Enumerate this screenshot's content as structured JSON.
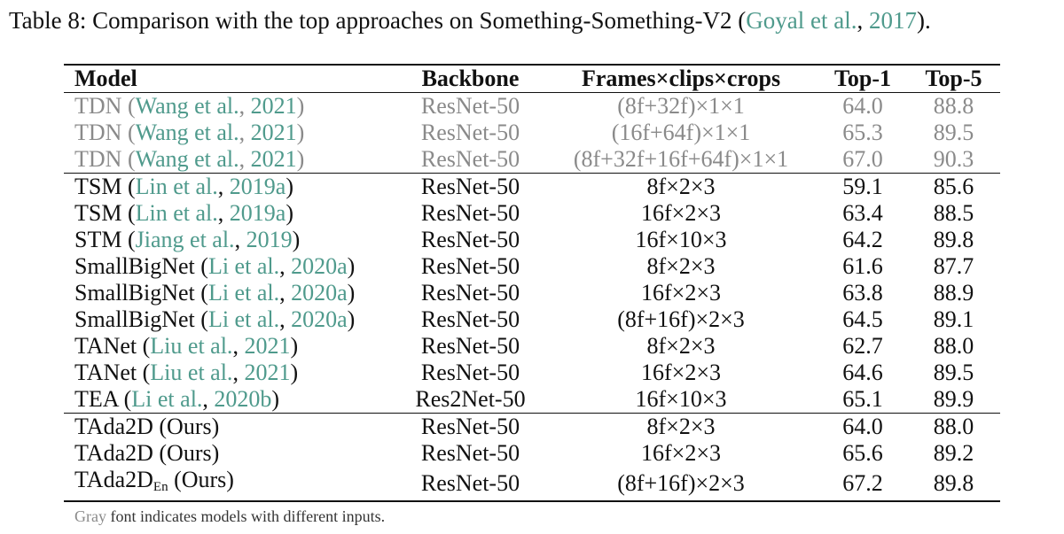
{
  "caption": {
    "prefix": "Table 8: Comparison with the top approaches on Something-Something-V2 (",
    "cite_author": "Goyal et al.",
    "sep": ", ",
    "cite_year": "2017",
    "suffix": ")."
  },
  "table": {
    "headers": [
      "Model",
      "Backbone",
      "Frames×clips×crops",
      "Top-1",
      "Top-5"
    ],
    "rows": [
      {
        "gray": true,
        "group_start": false,
        "model": "TDN",
        "cite_author": "Wang et al.",
        "cite_year": "2021",
        "backbone": "ResNet-50",
        "frames": "(8f+32f)×1×1",
        "top1": "64.0",
        "top5": "88.8"
      },
      {
        "gray": true,
        "group_start": false,
        "model": "TDN",
        "cite_author": "Wang et al.",
        "cite_year": "2021",
        "backbone": "ResNet-50",
        "frames": "(16f+64f)×1×1",
        "top1": "65.3",
        "top5": "89.5"
      },
      {
        "gray": true,
        "group_start": false,
        "model": "TDN",
        "cite_author": "Wang et al.",
        "cite_year": "2021",
        "backbone": "ResNet-50",
        "frames": "(8f+32f+16f+64f)×1×1",
        "top1": "67.0",
        "top5": "90.3"
      },
      {
        "gray": false,
        "group_start": true,
        "model": "TSM",
        "cite_author": "Lin et al.",
        "cite_year": "2019a",
        "backbone": "ResNet-50",
        "frames": "8f×2×3",
        "top1": "59.1",
        "top5": "85.6"
      },
      {
        "gray": false,
        "group_start": false,
        "model": "TSM",
        "cite_author": "Lin et al.",
        "cite_year": "2019a",
        "backbone": "ResNet-50",
        "frames": "16f×2×3",
        "top1": "63.4",
        "top5": "88.5"
      },
      {
        "gray": false,
        "group_start": false,
        "model": "STM",
        "cite_author": "Jiang et al.",
        "cite_year": "2019",
        "backbone": "ResNet-50",
        "frames": "16f×10×3",
        "top1": "64.2",
        "top5": "89.8"
      },
      {
        "gray": false,
        "group_start": false,
        "model": "SmallBigNet",
        "cite_author": "Li et al.",
        "cite_year": "2020a",
        "backbone": "ResNet-50",
        "frames": "8f×2×3",
        "top1": "61.6",
        "top5": "87.7"
      },
      {
        "gray": false,
        "group_start": false,
        "model": "SmallBigNet",
        "cite_author": "Li et al.",
        "cite_year": "2020a",
        "backbone": "ResNet-50",
        "frames": "16f×2×3",
        "top1": "63.8",
        "top5": "88.9"
      },
      {
        "gray": false,
        "group_start": false,
        "model": "SmallBigNet",
        "cite_author": "Li et al.",
        "cite_year": "2020a",
        "backbone": "ResNet-50",
        "frames": "(8f+16f)×2×3",
        "top1": "64.5",
        "top5": "89.1"
      },
      {
        "gray": false,
        "group_start": false,
        "model": "TANet",
        "cite_author": "Liu et al.",
        "cite_year": "2021",
        "backbone": "ResNet-50",
        "frames": "8f×2×3",
        "top1": "62.7",
        "top5": "88.0"
      },
      {
        "gray": false,
        "group_start": false,
        "model": "TANet",
        "cite_author": "Liu et al.",
        "cite_year": "2021",
        "backbone": "ResNet-50",
        "frames": "16f×2×3",
        "top1": "64.6",
        "top5": "89.5"
      },
      {
        "gray": false,
        "group_start": false,
        "model": "TEA",
        "cite_author": "Li et al.",
        "cite_year": "2020b",
        "backbone": "Res2Net-50",
        "frames": "16f×10×3",
        "top1": "65.1",
        "top5": "89.9"
      },
      {
        "gray": false,
        "group_start": true,
        "model": "TAda2D (Ours)",
        "cite_author": "",
        "cite_year": "",
        "backbone": "ResNet-50",
        "frames": "8f×2×3",
        "top1": "64.0",
        "top5": "88.0"
      },
      {
        "gray": false,
        "group_start": false,
        "model": "TAda2D (Ours)",
        "cite_author": "",
        "cite_year": "",
        "backbone": "ResNet-50",
        "frames": "16f×2×3",
        "top1": "65.6",
        "top5": "89.2"
      },
      {
        "gray": false,
        "group_start": false,
        "model": "TAda2D",
        "model_sub": "En",
        "model_suffix": " (Ours)",
        "cite_author": "",
        "cite_year": "",
        "backbone": "ResNet-50",
        "frames": "(8f+16f)×2×3",
        "top1": "67.2",
        "top5": "89.8"
      }
    ]
  },
  "note": {
    "gray_word": "Gray",
    "rest": " font indicates models with different inputs."
  },
  "colors": {
    "citation": "#4f9a8c",
    "gray_text": "#8a8a8a"
  }
}
